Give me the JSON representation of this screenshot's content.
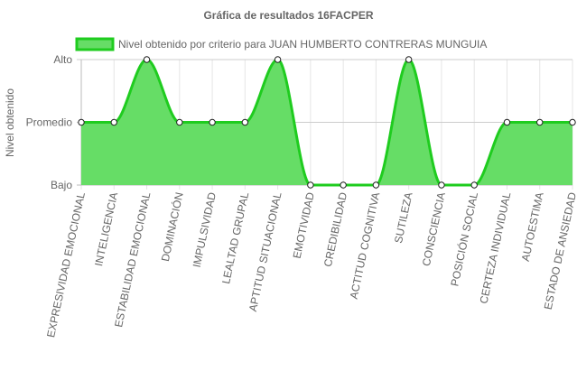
{
  "chart_data": {
    "type": "area",
    "title": "Gráfica de resultados 16FACPER",
    "ylabel": "Nivel obtenido",
    "xlabel": "",
    "y_levels": [
      "Bajo",
      "Promedio",
      "Alto"
    ],
    "ylim": [
      0,
      2
    ],
    "grid": true,
    "legend_position": "top",
    "categories": [
      "EXPRESIVIDAD EMOCIONAL",
      "INTELIGENCIA",
      "ESTABILIDAD EMOCIONAL",
      "DOMINACIÓN",
      "IMPULSIVIDAD",
      "LEALTAD GRUPAL",
      "APTITUD SITUACIONAL",
      "EMOTIVIDAD",
      "CREDIBILIDAD",
      "ACTITUD COGNITIVA",
      "SUTILEZA",
      "CONSCIENCIA",
      "POSICIÓN SOCIAL",
      "CERTEZA INDIVIDUAL",
      "AUTOESTIMA",
      "ESTADO DE ANSIEDAD"
    ],
    "series": [
      {
        "name": "Nivel obtenido por criterio para JUAN HUMBERTO CONTRERAS MUNGUIA",
        "values": [
          1,
          1,
          2,
          1,
          1,
          1,
          2,
          0,
          0,
          0,
          2,
          0,
          0,
          1,
          1,
          1
        ],
        "stroke_color": "#1fcc1f",
        "fill_color": "#66dd66"
      }
    ]
  }
}
